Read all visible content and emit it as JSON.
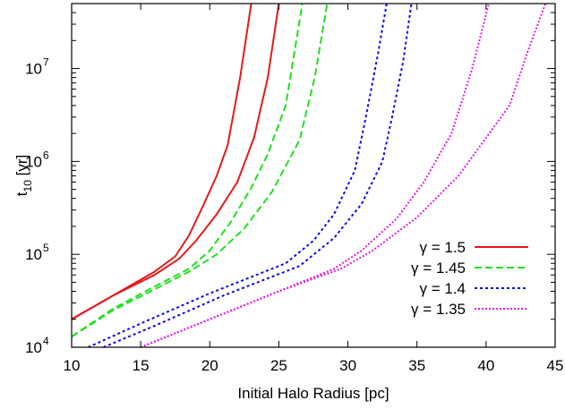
{
  "chart_data": {
    "type": "line",
    "title": "",
    "xlabel": "Initial Halo Radius [pc]",
    "ylabel_main": "t",
    "ylabel_sub": "10",
    "ylabel_unit": " [yr]",
    "x_scale": "linear",
    "y_scale": "log",
    "xlim": [
      10,
      45
    ],
    "ylim": [
      10000,
      50000000
    ],
    "x_ticks": [
      10,
      15,
      20,
      25,
      30,
      35,
      40,
      45
    ],
    "x_tick_labels": [
      "10",
      "15",
      "20",
      "25",
      "30",
      "35",
      "40",
      "45"
    ],
    "y_ticks": [
      10000,
      100000,
      1000000,
      10000000
    ],
    "y_tick_labels": [
      {
        "base": "10",
        "exp": "4"
      },
      {
        "base": "10",
        "exp": "5"
      },
      {
        "base": "10",
        "exp": "6"
      },
      {
        "base": "10",
        "exp": "7"
      }
    ],
    "grid": false,
    "legend_position": "bottom-right",
    "series": [
      {
        "name": "γ = 1.5",
        "color": "#e41a1c",
        "dash": "solid",
        "curves": [
          [
            [
              10,
              20000
            ],
            [
              13,
              36000
            ],
            [
              16,
              65000
            ],
            [
              17.5,
              95000
            ],
            [
              18.5,
              160000
            ],
            [
              19.5,
              330000
            ],
            [
              20.5,
              700000
            ],
            [
              21.3,
              1500000
            ],
            [
              22.2,
              8000000
            ],
            [
              23,
              50000000
            ]
          ],
          [
            [
              10,
              20000
            ],
            [
              13,
              36000
            ],
            [
              16,
              60000
            ],
            [
              17.8,
              90000
            ],
            [
              19,
              140000
            ],
            [
              20.5,
              270000
            ],
            [
              22,
              600000
            ],
            [
              23.2,
              1800000
            ],
            [
              24.2,
              8000000
            ],
            [
              25,
              50000000
            ]
          ]
        ]
      },
      {
        "name": "γ = 1.45",
        "color": "#1fe01f",
        "dash": "8,4",
        "curves": [
          [
            [
              10,
              13000
            ],
            [
              13,
              26000
            ],
            [
              16,
              45000
            ],
            [
              18.5,
              70000
            ],
            [
              20,
              110000
            ],
            [
              21.5,
              220000
            ],
            [
              23,
              520000
            ],
            [
              24.2,
              1200000
            ],
            [
              25.5,
              4000000
            ],
            [
              26.7,
              50000000
            ]
          ],
          [
            [
              10,
              13000
            ],
            [
              13,
              25000
            ],
            [
              16,
              42000
            ],
            [
              18.5,
              65000
            ],
            [
              20.5,
              100000
            ],
            [
              22.5,
              190000
            ],
            [
              24.5,
              470000
            ],
            [
              26.5,
              1700000
            ],
            [
              27.6,
              8000000
            ],
            [
              28.5,
              50000000
            ]
          ]
        ]
      },
      {
        "name": "γ = 1.4",
        "color": "#0a0ae8",
        "dash": "3,3",
        "curves": [
          [
            [
              11.2,
              10000
            ],
            [
              15,
              18000
            ],
            [
              20,
              38000
            ],
            [
              25.5,
              80000
            ],
            [
              27.5,
              140000
            ],
            [
              29,
              270000
            ],
            [
              30.5,
              800000
            ],
            [
              31.3,
              3000000
            ],
            [
              32.2,
              15000000
            ],
            [
              32.8,
              50000000
            ]
          ],
          [
            [
              12.3,
              10000
            ],
            [
              16,
              17000
            ],
            [
              21,
              36000
            ],
            [
              26.5,
              75000
            ],
            [
              29,
              150000
            ],
            [
              31,
              350000
            ],
            [
              32.5,
              1000000
            ],
            [
              33.2,
              3000000
            ],
            [
              34,
              12000000
            ],
            [
              34.6,
              50000000
            ]
          ]
        ]
      },
      {
        "name": "γ = 1.35",
        "color": "#e31ae3",
        "dash": "2,2",
        "curves": [
          [
            [
              15,
              10000
            ],
            [
              20,
              20000
            ],
            [
              25,
              40000
            ],
            [
              29,
              70000
            ],
            [
              31,
              110000
            ],
            [
              33.5,
              240000
            ],
            [
              35.5,
              600000
            ],
            [
              37.5,
              2000000
            ],
            [
              39,
              10000000
            ],
            [
              40.2,
              50000000
            ]
          ],
          [
            [
              15,
              10000
            ],
            [
              20,
              20000
            ],
            [
              25,
              40000
            ],
            [
              29.5,
              70000
            ],
            [
              31.8,
              110000
            ],
            [
              35,
              250000
            ],
            [
              38,
              700000
            ],
            [
              40,
              1800000
            ],
            [
              41.7,
              4000000
            ],
            [
              43,
              15000000
            ],
            [
              44.3,
              50000000
            ]
          ]
        ]
      }
    ]
  }
}
